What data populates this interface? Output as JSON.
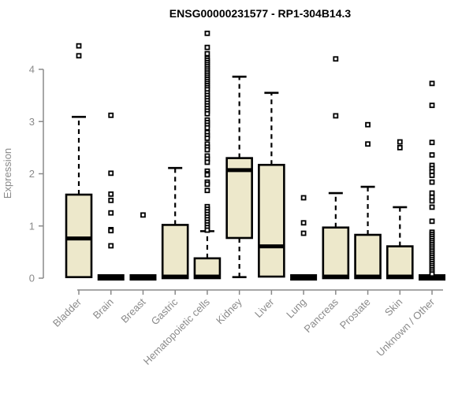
{
  "chart_data": {
    "type": "boxplot",
    "title": "ENSG00000231577 - RP1-304B14.3",
    "ylabel": "Expression",
    "xlabel": "",
    "ylim": [
      0,
      4.75
    ],
    "yticks": [
      0,
      1,
      2,
      3,
      4
    ],
    "grid": false,
    "legend": "none",
    "categories": [
      "Bladder",
      "Brain",
      "Breast",
      "Gastric",
      "Hematopoietic cells",
      "Kidney",
      "Liver",
      "Lung",
      "Pancreas",
      "Prostate",
      "Skin",
      "Unknown / Other"
    ],
    "boxes": [
      {
        "category": "Bladder",
        "q1": 0.02,
        "median": 0.76,
        "q3": 1.6,
        "whisker_low": 0.02,
        "whisker_high": 3.09,
        "outliers": [
          4.45,
          4.26
        ]
      },
      {
        "category": "Brain",
        "q1": 0,
        "median": 0.01,
        "q3": 0.03,
        "whisker_low": 0,
        "whisker_high": 0.03,
        "outliers": [
          3.12,
          2.01,
          1.61,
          1.49,
          1.25,
          0.93,
          0.91,
          0.62
        ]
      },
      {
        "category": "Breast",
        "q1": 0,
        "median": 0.01,
        "q3": 0.03,
        "whisker_low": 0,
        "whisker_high": 0.03,
        "outliers": [
          1.21
        ]
      },
      {
        "category": "Gastric",
        "q1": 0,
        "median": 0.03,
        "q3": 1.02,
        "whisker_low": 0,
        "whisker_high": 2.11,
        "outliers": []
      },
      {
        "category": "Hematopoietic cells",
        "q1": 0,
        "median": 0.03,
        "q3": 0.38,
        "whisker_low": 0,
        "whisker_high": 0.9,
        "outliers": [
          4.69,
          4.42,
          4.3,
          4.21,
          4.17,
          4.13,
          4.09,
          4.05,
          4.01,
          3.97,
          3.93,
          3.89,
          3.85,
          3.81,
          3.77,
          3.73,
          3.69,
          3.65,
          3.61,
          3.55,
          3.5,
          3.45,
          3.4,
          3.35,
          3.3,
          3.25,
          3.2,
          3.15,
          3.03,
          2.98,
          2.93,
          2.88,
          2.79,
          2.73,
          2.68,
          2.57,
          2.51,
          2.46,
          2.34,
          2.28,
          2.22,
          2.05,
          2.0,
          1.98,
          1.84,
          1.8,
          1.68,
          1.37,
          1.32,
          1.27,
          1.22,
          1.17,
          1.12,
          1.07,
          1.02,
          0.97,
          0.92
        ]
      },
      {
        "category": "Kidney",
        "q1": 0.77,
        "median": 2.07,
        "q3": 2.3,
        "whisker_low": 0.02,
        "whisker_high": 3.86,
        "outliers": []
      },
      {
        "category": "Liver",
        "q1": 0.03,
        "median": 0.61,
        "q3": 2.17,
        "whisker_low": 0.03,
        "whisker_high": 3.55,
        "outliers": []
      },
      {
        "category": "Lung",
        "q1": 0,
        "median": 0.01,
        "q3": 0.03,
        "whisker_low": 0,
        "whisker_high": 0.03,
        "outliers": [
          1.54,
          1.06,
          0.86
        ]
      },
      {
        "category": "Pancreas",
        "q1": 0,
        "median": 0.03,
        "q3": 0.97,
        "whisker_low": 0,
        "whisker_high": 1.63,
        "outliers": [
          4.2,
          3.11
        ]
      },
      {
        "category": "Prostate",
        "q1": 0,
        "median": 0.03,
        "q3": 0.83,
        "whisker_low": 0,
        "whisker_high": 1.75,
        "outliers": [
          2.94,
          2.57
        ]
      },
      {
        "category": "Skin",
        "q1": 0,
        "median": 0.03,
        "q3": 0.61,
        "whisker_low": 0,
        "whisker_high": 1.36,
        "outliers": [
          2.61,
          2.5
        ]
      },
      {
        "category": "Unknown / Other",
        "q1": 0,
        "median": 0.01,
        "q3": 0.03,
        "whisker_low": 0,
        "whisker_high": 0.03,
        "outliers": [
          3.73,
          3.31,
          2.6,
          2.36,
          2.16,
          2.1,
          2.04,
          1.97,
          1.84,
          1.63,
          1.55,
          1.48,
          1.36,
          1.09,
          0.88,
          0.84,
          0.8,
          0.76,
          0.72,
          0.68,
          0.64,
          0.6,
          0.56,
          0.52,
          0.48,
          0.44,
          0.4,
          0.36,
          0.32,
          0.28,
          0.24,
          0.2,
          0.16,
          0.12,
          0.08
        ]
      }
    ],
    "style": {
      "box_fill": "#EDE8CB",
      "box_border": "#000000",
      "median_color": "#000000",
      "whisker_style": "dashed",
      "outlier_marker": "open-square",
      "axis_color": "#8A8A8A",
      "tick_text_color": "#8A8A8A",
      "title_color": "#000000",
      "background": "#FFFFFF"
    }
  }
}
